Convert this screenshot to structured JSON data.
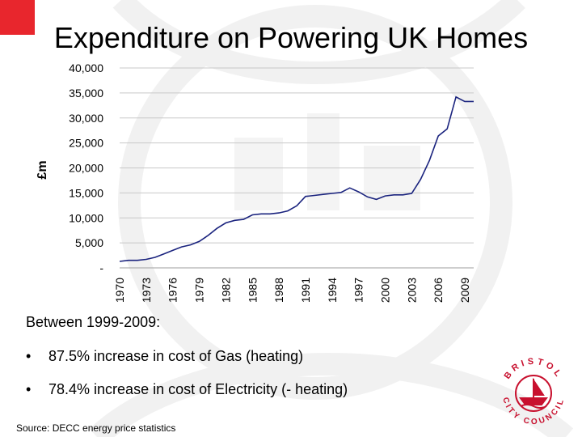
{
  "slide": {
    "title": "Expenditure on Powering UK Homes",
    "intro": "Between 1999-2009:",
    "bullets": [
      "87.5% increase in cost of Gas (heating)",
      "78.4% increase in cost of Electricity (- heating)"
    ],
    "bullet_glyph": "•",
    "source": "Source: DECC energy price statistics",
    "accent_color": "#e8262d",
    "logo": {
      "icon": "bristol-city-council-seal-icon",
      "text_top": "BRISTOL",
      "text_bottom": "CITY COUNCIL",
      "color": "#c8102e"
    }
  },
  "chart_data": {
    "type": "line",
    "ylabel": "£m",
    "xlabel": "",
    "title": "",
    "ylim": [
      0,
      40000
    ],
    "xlim": [
      1970,
      2010
    ],
    "y_ticks": [
      0,
      5000,
      10000,
      15000,
      20000,
      25000,
      30000,
      35000,
      40000
    ],
    "y_tick_labels": [
      "-",
      "5,000",
      "10,000",
      "15,000",
      "20,000",
      "25,000",
      "30,000",
      "35,000",
      "40,000"
    ],
    "x_ticks": [
      1970,
      1973,
      1976,
      1979,
      1982,
      1985,
      1988,
      1991,
      1994,
      1997,
      2000,
      2003,
      2006,
      2009
    ],
    "x_tick_labels": [
      "1970",
      "1973",
      "1976",
      "1979",
      "1982",
      "1985",
      "1988",
      "1991",
      "1994",
      "1997",
      "2000",
      "2003",
      "2006",
      "2009"
    ],
    "grid": "horizontal",
    "line_color": "#1a237e",
    "series": [
      {
        "x": [
          1970,
          1971,
          1972,
          1973,
          1974,
          1975,
          1976,
          1977,
          1978,
          1979,
          1980,
          1981,
          1982,
          1983,
          1984,
          1985,
          1986,
          1987,
          1988,
          1989,
          1990,
          1991,
          1992,
          1993,
          1994,
          1995,
          1996,
          1997,
          1998,
          1999,
          2000,
          2001,
          2002,
          2003,
          2004,
          2005,
          2006,
          2007,
          2008,
          2009,
          2010
        ],
        "y": [
          1300,
          1500,
          1500,
          1700,
          2100,
          2800,
          3500,
          4200,
          4600,
          5300,
          6500,
          7900,
          9000,
          9500,
          9700,
          10600,
          10800,
          10800,
          11000,
          11400,
          12400,
          14300,
          14500,
          14700,
          14900,
          15100,
          16000,
          15200,
          14200,
          13700,
          14400,
          14600,
          14600,
          14900,
          17700,
          21500,
          26400,
          27800,
          34200,
          33300,
          33300
        ]
      }
    ]
  }
}
